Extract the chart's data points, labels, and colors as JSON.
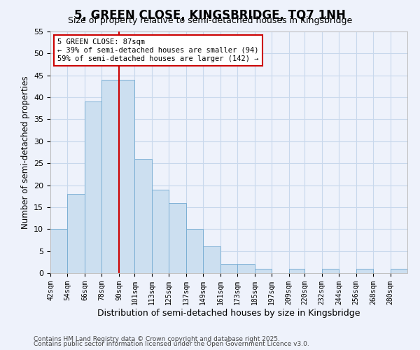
{
  "title": "5, GREEN CLOSE, KINGSBRIDGE, TQ7 1NH",
  "subtitle": "Size of property relative to semi-detached houses in Kingsbridge",
  "xlabel": "Distribution of semi-detached houses by size in Kingsbridge",
  "ylabel": "Number of semi-detached properties",
  "bin_labels": [
    "42sqm",
    "54sqm",
    "66sqm",
    "78sqm",
    "90sqm",
    "101sqm",
    "113sqm",
    "125sqm",
    "137sqm",
    "149sqm",
    "161sqm",
    "173sqm",
    "185sqm",
    "197sqm",
    "209sqm",
    "220sqm",
    "232sqm",
    "244sqm",
    "256sqm",
    "268sqm",
    "280sqm"
  ],
  "bar_values": [
    10,
    18,
    39,
    44,
    44,
    26,
    19,
    16,
    10,
    6,
    2,
    2,
    1,
    0,
    1,
    0,
    1,
    0,
    1,
    0,
    1
  ],
  "bar_color": "#ccdff0",
  "bar_edge_color": "#7bafd4",
  "grid_color": "#c8d8ec",
  "bin_edges": [
    42,
    54,
    66,
    78,
    90,
    101,
    113,
    125,
    137,
    149,
    161,
    173,
    185,
    197,
    209,
    220,
    232,
    244,
    256,
    268,
    280,
    292
  ],
  "property_line_x": 90,
  "annotation_title": "5 GREEN CLOSE: 87sqm",
  "annotation_line1": "← 39% of semi-detached houses are smaller (94)",
  "annotation_line2": "59% of semi-detached houses are larger (142) →",
  "annotation_box_color": "#ffffff",
  "annotation_box_edge": "#cc0000",
  "vline_color": "#cc0000",
  "ylim": [
    0,
    55
  ],
  "yticks": [
    0,
    5,
    10,
    15,
    20,
    25,
    30,
    35,
    40,
    45,
    50,
    55
  ],
  "footer1": "Contains HM Land Registry data © Crown copyright and database right 2025.",
  "footer2": "Contains public sector information licensed under the Open Government Licence v3.0.",
  "bg_color": "#eef2fb",
  "title_fontsize": 12,
  "subtitle_fontsize": 9,
  "footer_fontsize": 6.5
}
